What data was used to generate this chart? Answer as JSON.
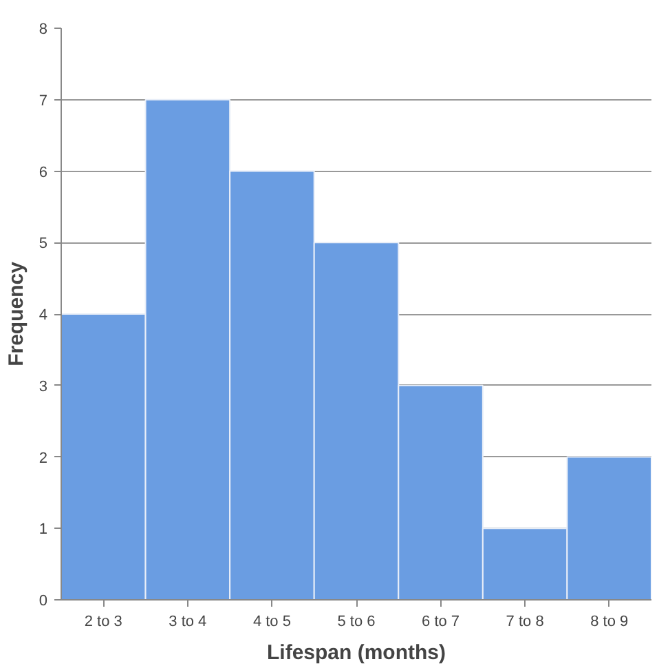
{
  "chart_data": {
    "type": "bar",
    "xlabel": "Lifespan (months)",
    "ylabel": "Frequency",
    "categories": [
      "2 to 3",
      "3 to 4",
      "4 to 5",
      "5 to 6",
      "6 to 7",
      "7 to 8",
      "8 to 9"
    ],
    "values": [
      4,
      7,
      6,
      5,
      3,
      1,
      2
    ],
    "color": "#6a9de2",
    "ylim": [
      0,
      8
    ],
    "yticks": [
      0,
      1,
      2,
      3,
      4,
      5,
      6,
      7,
      8
    ],
    "grid": "y"
  }
}
